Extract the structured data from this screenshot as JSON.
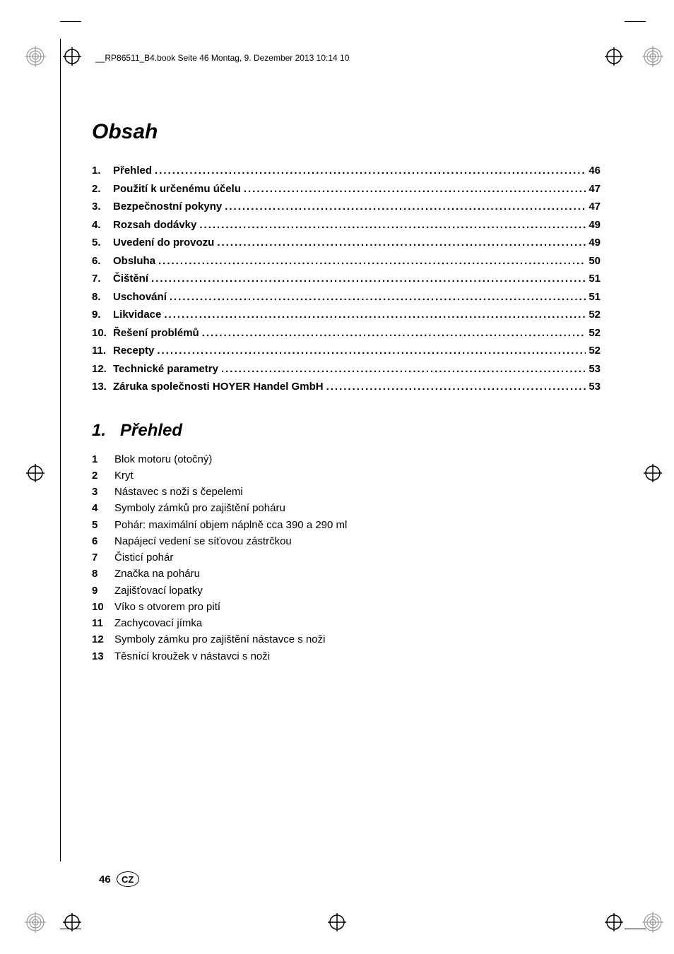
{
  "header": {
    "text": "__RP86511_B4.book  Seite 46  Montag, 9. Dezember 2013  10:14 10"
  },
  "title": "Obsah",
  "toc": [
    {
      "num": "1.",
      "title": "Přehled",
      "page": "46"
    },
    {
      "num": "2.",
      "title": "Použití k určenému účelu",
      "page": "47"
    },
    {
      "num": "3.",
      "title": "Bezpečnostní pokyny",
      "page": "47"
    },
    {
      "num": "4.",
      "title": "Rozsah dodávky",
      "page": "49"
    },
    {
      "num": "5.",
      "title": "Uvedení do provozu",
      "page": "49"
    },
    {
      "num": "6.",
      "title": "Obsluha",
      "page": "50"
    },
    {
      "num": "7.",
      "title": "Čištění",
      "page": "51"
    },
    {
      "num": "8.",
      "title": "Uschování",
      "page": "51"
    },
    {
      "num": "9.",
      "title": "Likvidace",
      "page": "52"
    },
    {
      "num": "10.",
      "title": "Řešení problémů",
      "page": "52"
    },
    {
      "num": "11.",
      "title": "Recepty",
      "page": "52"
    },
    {
      "num": "12.",
      "title": "Technické parametry",
      "page": "53"
    },
    {
      "num": "13.",
      "title": "Záruka společnosti HOYER Handel GmbH",
      "page": "53"
    }
  ],
  "section": {
    "num": "1.",
    "title": "Přehled"
  },
  "items": [
    {
      "num": "1",
      "text": "Blok motoru (otočný)"
    },
    {
      "num": "2",
      "text": "Kryt"
    },
    {
      "num": "3",
      "text": "Nástavec s noži s čepelemi"
    },
    {
      "num": "4",
      "text": "Symboly zámků pro zajištění poháru"
    },
    {
      "num": "5",
      "text": "Pohár: maximální objem náplně cca 390 a 290 ml"
    },
    {
      "num": "6",
      "text": "Napájecí vedení se síťovou zástrčkou"
    },
    {
      "num": "7",
      "text": "Čisticí pohár"
    },
    {
      "num": "8",
      "text": "Značka na poháru"
    },
    {
      "num": "9",
      "text": "Zajišťovací lopatky"
    },
    {
      "num": "10",
      "text": "Víko s otvorem pro pití"
    },
    {
      "num": "11",
      "text": "Zachycovací jímka"
    },
    {
      "num": "12",
      "text": "Symboly zámku pro zajištění nástavce s noži"
    },
    {
      "num": "13",
      "text": "Těsnící kroužek v nástavci s noži"
    }
  ],
  "footer": {
    "page": "46",
    "country": "CZ"
  },
  "style": {
    "font_color": "#000000",
    "background_color": "#ffffff",
    "title_fontsize": 30,
    "section_fontsize": 24,
    "body_fontsize": 15,
    "header_fontsize": 12
  }
}
